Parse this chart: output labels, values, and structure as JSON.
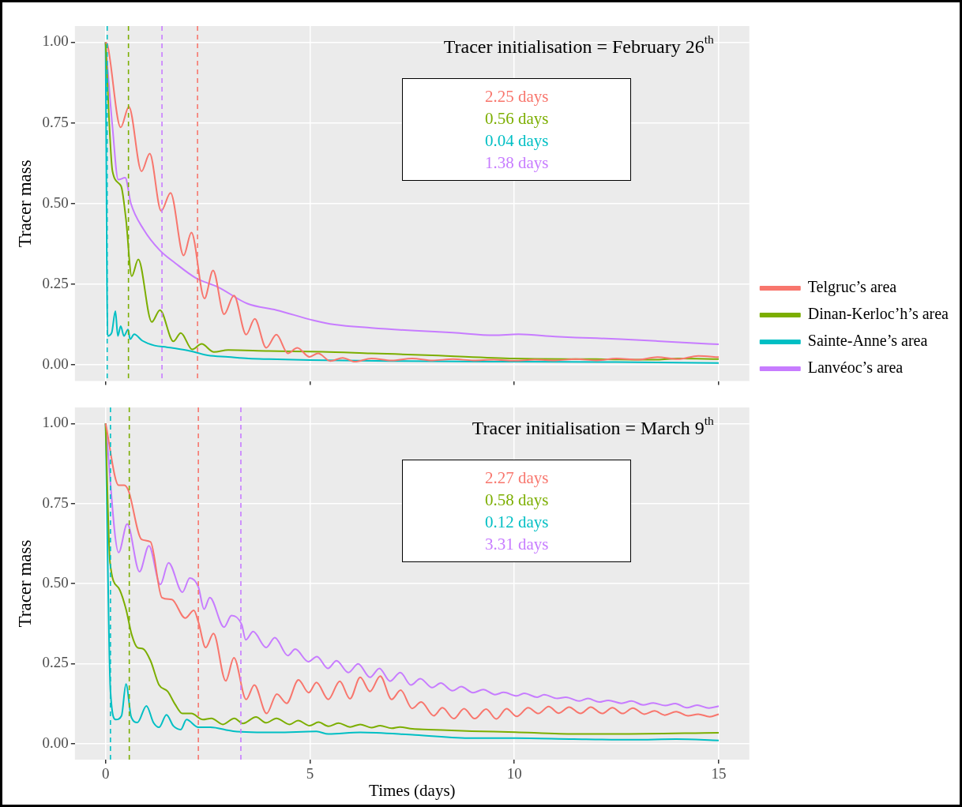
{
  "chart_data": [
    {
      "type": "line",
      "title": "Tracer initialisation = February 26$^{th}$",
      "ylabel": "Tracer mass",
      "xlim": [
        -0.75,
        15.75
      ],
      "xticks": [
        0,
        5,
        10,
        15
      ],
      "ylim": [
        -0.05,
        1.05
      ],
      "yticks": [
        {
          "value": 0,
          "label": "0.00"
        },
        {
          "value": 0.25,
          "label": "0.25"
        },
        {
          "value": 0.5,
          "label": "0.50"
        },
        {
          "value": 0.75,
          "label": "0.75"
        },
        {
          "value": 1,
          "label": "1.00"
        }
      ],
      "tick_labels": "y",
      "grid": true,
      "legend": "right",
      "marker": "none",
      "line_style": "solid",
      "series": [
        {
          "name": "Telgruc’s area",
          "color": "#f8766d",
          "x": [
            0,
            0.05,
            0.37,
            0.57,
            0.88,
            1.08,
            1.36,
            1.59,
            1.91,
            2.1,
            2.42,
            2.63,
            2.9,
            3.14,
            3.44,
            3.65,
            3.93,
            4.18,
            4.46,
            4.69,
            4.99,
            5.2,
            5.5,
            5.8,
            6.1,
            6.5,
            7,
            7.5,
            8,
            8.5,
            9,
            9.5,
            10,
            10.5,
            11,
            11.5,
            12,
            12.5,
            13,
            13.5,
            14,
            14.5,
            15
          ],
          "values": [
            1.0,
            0.99,
            0.736,
            0.8,
            0.6,
            0.655,
            0.477,
            0.533,
            0.339,
            0.41,
            0.206,
            0.293,
            0.157,
            0.215,
            0.094,
            0.143,
            0.053,
            0.094,
            0.036,
            0.053,
            0.025,
            0.036,
            0.012,
            0.022,
            0.01,
            0.02,
            0.014,
            0.02,
            0.014,
            0.018,
            0.014,
            0.016,
            0.013,
            0.016,
            0.014,
            0.018,
            0.014,
            0.02,
            0.016,
            0.024,
            0.018,
            0.028,
            0.024
          ]
        },
        {
          "name": "Dinan-Kerloc’h’s area",
          "color": "#7cae00",
          "x": [
            0,
            0.17,
            0.38,
            0.5,
            0.64,
            0.8,
            1.13,
            1.33,
            1.66,
            1.84,
            2.12,
            2.35,
            2.65,
            3.0,
            4,
            5.3,
            6.5,
            8,
            10,
            12,
            13.5,
            14,
            15
          ],
          "values": [
            1.0,
            0.6,
            0.554,
            0.45,
            0.275,
            0.327,
            0.133,
            0.17,
            0.073,
            0.099,
            0.048,
            0.065,
            0.04,
            0.046,
            0.043,
            0.041,
            0.036,
            0.03,
            0.02,
            0.018,
            0.016,
            0.02,
            0.018
          ]
        },
        {
          "name": "Sainte-Anne’s area",
          "color": "#00bfc4",
          "x": [
            0,
            0.05,
            0.15,
            0.24,
            0.3,
            0.37,
            0.45,
            0.55,
            0.6,
            0.7,
            0.9,
            1.2,
            1.5,
            2.0,
            2.5,
            3,
            3.5,
            4,
            5,
            7,
            10,
            12.5,
            15
          ],
          "values": [
            1.0,
            0.09,
            0.1,
            0.167,
            0.09,
            0.12,
            0.09,
            0.11,
            0.08,
            0.095,
            0.075,
            0.06,
            0.055,
            0.045,
            0.03,
            0.025,
            0.02,
            0.018,
            0.015,
            0.012,
            0.01,
            0.009,
            0.006
          ]
        },
        {
          "name": "Lanvéoc’s area",
          "color": "#c77cff",
          "x": [
            0,
            0.17,
            0.31,
            0.48,
            0.62,
            0.93,
            1.32,
            1.71,
            2.2,
            2.77,
            3.47,
            4.18,
            5.09,
            5.6,
            6.5,
            7.57,
            8.5,
            9.5,
            10.1,
            11,
            11.5,
            12.6,
            13.5,
            14.3,
            15
          ],
          "values": [
            1.0,
            0.736,
            0.574,
            0.58,
            0.5,
            0.42,
            0.356,
            0.315,
            0.27,
            0.24,
            0.19,
            0.17,
            0.138,
            0.125,
            0.115,
            0.106,
            0.1,
            0.092,
            0.095,
            0.088,
            0.085,
            0.08,
            0.074,
            0.068,
            0.064
          ]
        }
      ],
      "ref_lines": [
        {
          "axis": "x",
          "value": 2.25,
          "label": "2.25 days",
          "color": "#f8766d",
          "line_style": "dashed"
        },
        {
          "axis": "x",
          "value": 0.56,
          "label": "0.56 days",
          "color": "#7cae00",
          "line_style": "dashed"
        },
        {
          "axis": "x",
          "value": 0.04,
          "label": "0.04 days",
          "color": "#00bfc4",
          "line_style": "dashed"
        },
        {
          "axis": "x",
          "value": 1.38,
          "label": "1.38 days",
          "color": "#c77cff",
          "line_style": "dashed"
        }
      ]
    },
    {
      "type": "line",
      "title": "Tracer initialisation = March 9$^{th}$",
      "xlabel": "Times (days)",
      "ylabel": "Tracer mass",
      "xlim": [
        -0.75,
        15.75
      ],
      "xticks": [
        0,
        5,
        10,
        15
      ],
      "ylim": [
        -0.05,
        1.05
      ],
      "yticks": [
        {
          "value": 0,
          "label": "0.00"
        },
        {
          "value": 0.25,
          "label": "0.25"
        },
        {
          "value": 0.5,
          "label": "0.50"
        },
        {
          "value": 0.75,
          "label": "0.75"
        },
        {
          "value": 1,
          "label": "1.00"
        }
      ],
      "grid": true,
      "marker": "none",
      "line_style": "solid",
      "series": [
        {
          "color": "#f8766d",
          "x": [
            0,
            0.32,
            0.46,
            0.56,
            0.88,
            1.1,
            1.38,
            1.62,
            1.95,
            2.16,
            2.27,
            2.45,
            2.64,
            2.94,
            3.14,
            3.44,
            3.64,
            3.94,
            4.19,
            4.43,
            4.72,
            4.97,
            5.16,
            5.45,
            5.73,
            5.98,
            6.23,
            6.47,
            6.72,
            7.0,
            7.22,
            7.5,
            7.72,
            8.03,
            8.24,
            8.52,
            8.77,
            9.03,
            9.31,
            9.56,
            9.81,
            10.06,
            10.34,
            10.59,
            10.84,
            11.09,
            11.34,
            11.62,
            11.87,
            12.15,
            12.4,
            12.65,
            12.9,
            13.18,
            13.43,
            13.68,
            13.96,
            14.25,
            14.5,
            14.78,
            15
          ],
          "values": [
            1.0,
            0.807,
            0.807,
            0.79,
            0.638,
            0.63,
            0.456,
            0.45,
            0.392,
            0.416,
            0.38,
            0.3,
            0.344,
            0.196,
            0.268,
            0.138,
            0.183,
            0.094,
            0.155,
            0.126,
            0.199,
            0.159,
            0.191,
            0.138,
            0.195,
            0.14,
            0.207,
            0.163,
            0.211,
            0.138,
            0.167,
            0.11,
            0.13,
            0.087,
            0.112,
            0.078,
            0.109,
            0.078,
            0.108,
            0.077,
            0.109,
            0.085,
            0.112,
            0.094,
            0.116,
            0.095,
            0.114,
            0.094,
            0.114,
            0.094,
            0.112,
            0.094,
            0.111,
            0.092,
            0.102,
            0.089,
            0.1,
            0.087,
            0.092,
            0.084,
            0.092
          ]
        },
        {
          "color": "#7cae00",
          "x": [
            0,
            0.11,
            0.32,
            0.5,
            0.64,
            0.78,
            0.92,
            1.1,
            1.31,
            1.52,
            1.7,
            1.88,
            2.1,
            2.38,
            2.59,
            2.87,
            3.15,
            3.36,
            3.68,
            3.93,
            4.18,
            4.5,
            4.71,
            4.99,
            5.21,
            5.45,
            5.7,
            5.98,
            6.23,
            6.5,
            6.72,
            7.0,
            7.2,
            7.51,
            7.9,
            8.96,
            10.03,
            11.1,
            12.5,
            15
          ],
          "values": [
            1.0,
            0.565,
            0.486,
            0.42,
            0.34,
            0.3,
            0.296,
            0.259,
            0.183,
            0.163,
            0.123,
            0.094,
            0.094,
            0.075,
            0.079,
            0.06,
            0.079,
            0.063,
            0.083,
            0.065,
            0.079,
            0.06,
            0.072,
            0.056,
            0.067,
            0.054,
            0.064,
            0.052,
            0.06,
            0.05,
            0.056,
            0.048,
            0.052,
            0.046,
            0.044,
            0.039,
            0.036,
            0.031,
            0.03,
            0.034
          ]
        },
        {
          "color": "#00bfc4",
          "x": [
            0,
            0.12,
            0.25,
            0.39,
            0.5,
            0.63,
            0.78,
            1.0,
            1.17,
            1.31,
            1.49,
            1.66,
            1.84,
            1.98,
            2.27,
            2.56,
            3.12,
            4.18,
            5.16,
            5.45,
            6.23,
            7.57,
            8.96,
            10.03,
            11.45,
            12.9,
            13.96,
            15
          ],
          "values": [
            1.0,
            0.163,
            0.075,
            0.087,
            0.186,
            0.082,
            0.066,
            0.118,
            0.066,
            0.051,
            0.09,
            0.055,
            0.044,
            0.075,
            0.051,
            0.051,
            0.039,
            0.035,
            0.038,
            0.03,
            0.035,
            0.027,
            0.017,
            0.017,
            0.014,
            0.012,
            0.014,
            0.01
          ]
        },
        {
          "color": "#c77cff",
          "x": [
            0,
            0.32,
            0.53,
            0.83,
            1.06,
            1.34,
            1.54,
            1.88,
            2.06,
            2.27,
            2.41,
            2.55,
            2.9,
            3.08,
            3.33,
            3.43,
            3.61,
            3.93,
            4.14,
            4.46,
            4.64,
            4.96,
            5.17,
            5.44,
            5.65,
            5.94,
            6.18,
            6.47,
            6.7,
            6.96,
            7.21,
            7.47,
            7.7,
            7.99,
            8.2,
            8.49,
            8.7,
            8.99,
            9.24,
            9.53,
            9.74,
            10.06,
            10.24,
            10.56,
            10.73,
            11.05,
            11.26,
            11.59,
            11.8,
            12.08,
            12.3,
            12.62,
            12.87,
            13.15,
            13.4,
            13.69,
            13.94,
            14.22,
            14.47,
            14.76,
            15
          ],
          "values": [
            1.0,
            0.597,
            0.686,
            0.537,
            0.618,
            0.497,
            0.565,
            0.473,
            0.517,
            0.489,
            0.42,
            0.456,
            0.364,
            0.4,
            0.372,
            0.324,
            0.35,
            0.3,
            0.331,
            0.275,
            0.295,
            0.256,
            0.272,
            0.235,
            0.259,
            0.222,
            0.249,
            0.207,
            0.235,
            0.195,
            0.222,
            0.183,
            0.203,
            0.175,
            0.189,
            0.165,
            0.178,
            0.159,
            0.169,
            0.153,
            0.16,
            0.149,
            0.157,
            0.145,
            0.153,
            0.141,
            0.145,
            0.133,
            0.141,
            0.13,
            0.135,
            0.126,
            0.133,
            0.121,
            0.127,
            0.119,
            0.125,
            0.112,
            0.12,
            0.111,
            0.117
          ]
        }
      ],
      "ref_lines": [
        {
          "axis": "x",
          "value": 2.27,
          "label": "2.27 days",
          "color": "#f8766d",
          "line_style": "dashed"
        },
        {
          "axis": "x",
          "value": 0.58,
          "label": "0.58 days",
          "color": "#7cae00",
          "line_style": "dashed"
        },
        {
          "axis": "x",
          "value": 0.12,
          "label": "0.12 days",
          "color": "#00bfc4",
          "line_style": "dashed"
        },
        {
          "axis": "x",
          "value": 3.31,
          "label": "3.31 days",
          "color": "#c77cff",
          "line_style": "dashed"
        }
      ]
    }
  ]
}
